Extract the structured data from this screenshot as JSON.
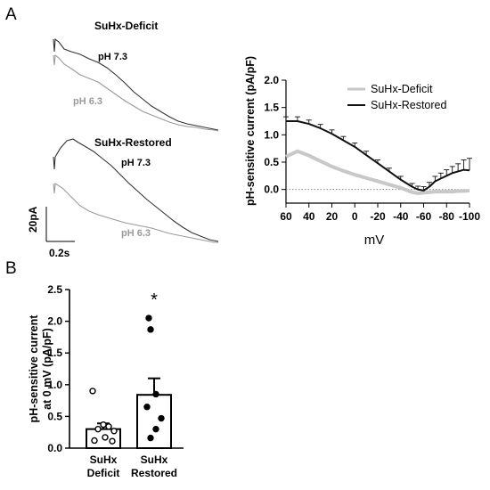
{
  "panel_labels": {
    "a": "A",
    "b": "B"
  },
  "traces": {
    "scale_current": "20pA",
    "scale_time": "0.2s",
    "top": {
      "title": "SuHx-Deficit",
      "ph_high": "pH 7.3",
      "ph_low": "pH 6.3"
    },
    "bottom": {
      "title": "SuHx-Restored",
      "ph_high": "pH 7.3",
      "ph_low": "pH 6.3"
    }
  },
  "colors": {
    "deficit": "#c8c8c8",
    "restored": "#111111",
    "trace_dark": "#333333",
    "trace_light": "#9a9a9a",
    "label_gray": "#9b9b9b",
    "bar_fill": "#ffffff",
    "axis": "#000000"
  },
  "chart_data": [
    {
      "type": "line",
      "xlabel": "mV",
      "ylabel": "pH-sensitive current (pA/pF)",
      "xlim": [
        60,
        -100
      ],
      "ylim": [
        -0.25,
        2.0
      ],
      "x_tick_labels": [
        "60",
        "40",
        "20",
        "0",
        "-20",
        "-40",
        "-60",
        "-80",
        "-100"
      ],
      "y_tick_labels": [
        "0.0",
        "0.5",
        "1.0",
        "1.5",
        "2.0"
      ],
      "reference_line_y": 0,
      "legend_position": "top-right",
      "x": [
        60,
        50,
        40,
        30,
        20,
        10,
        0,
        -10,
        -20,
        -30,
        -40,
        -50,
        -55,
        -60,
        -65,
        -70,
        -75,
        -80,
        -85,
        -90,
        -95,
        -100
      ],
      "series": [
        {
          "name": "SuHx-Deficit",
          "values": [
            0.6,
            0.7,
            0.62,
            0.52,
            0.42,
            0.34,
            0.27,
            0.21,
            0.15,
            0.09,
            0.03,
            -0.05,
            -0.07,
            -0.06,
            -0.05,
            -0.04,
            -0.04,
            -0.04,
            -0.04,
            -0.03,
            -0.03,
            -0.02
          ]
        },
        {
          "name": "SuHx-Restored",
          "values": [
            1.25,
            1.25,
            1.2,
            1.12,
            1.02,
            0.9,
            0.78,
            0.63,
            0.48,
            0.33,
            0.18,
            0.05,
            0.0,
            -0.02,
            0.05,
            0.15,
            0.2,
            0.25,
            0.3,
            0.33,
            0.36,
            0.35
          ],
          "sem": [
            0.08,
            0.08,
            0.07,
            0.07,
            0.07,
            0.07,
            0.07,
            0.07,
            0.06,
            0.06,
            0.06,
            0.06,
            0.06,
            0.07,
            0.08,
            0.09,
            0.1,
            0.11,
            0.12,
            0.14,
            0.18,
            0.22
          ]
        }
      ]
    },
    {
      "type": "bar",
      "categories": [
        "SuHx\nDeficit",
        "SuHx\nRestored"
      ],
      "values": [
        0.3,
        0.84
      ],
      "sem": [
        0.09,
        0.26
      ],
      "ylabel": "pH-sensitive current at 0 mV (pA/pF)",
      "ylim": [
        0,
        2.5
      ],
      "y_tick_labels": [
        "0.0",
        "0.5",
        "1.0",
        "1.5",
        "2.0",
        "2.5"
      ],
      "points": [
        {
          "series": "SuHx Deficit",
          "marker": "open",
          "values": [
            0.9,
            0.37,
            0.34,
            0.3,
            0.27,
            0.17,
            0.12,
            0.11
          ]
        },
        {
          "series": "SuHx Restored",
          "marker": "filled",
          "values": [
            2.05,
            1.87,
            0.85,
            0.65,
            0.47,
            0.3,
            0.16
          ]
        }
      ],
      "significance_marker": "*"
    }
  ]
}
